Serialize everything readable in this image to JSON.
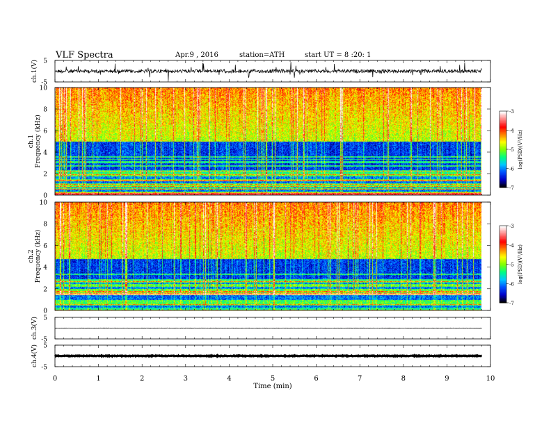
{
  "header": {
    "title": "VLF  Spectra",
    "date": "Apr.9 , 2016",
    "station": "station=ATH",
    "start": "start  UT  =   8 :20: 1"
  },
  "chart_data": [
    {
      "type": "line",
      "panel": "ch1-waveform",
      "ylabel": "ch.1(V)",
      "ylim": [
        -5,
        5
      ],
      "y_ticks": [
        "5",
        "-5"
      ],
      "xlim": [
        0,
        10
      ],
      "baseline": 0
    },
    {
      "type": "heatmap",
      "panel": "ch1-spectrogram",
      "ylabel": "ch.1 Frequency  (kHz)",
      "ylim": [
        0,
        10
      ],
      "y_ticks": [
        "0",
        "2",
        "4",
        "6",
        "8",
        "10"
      ],
      "xlim": [
        0,
        10
      ],
      "colorbar": {
        "label": "log(PSD)(V²/Hz)",
        "range": [
          -7,
          -3
        ],
        "ticks": [
          "-3",
          "-4",
          "-5",
          "-6",
          "-7"
        ],
        "colormap": [
          "#000000",
          "#0000c8",
          "#0050ff",
          "#00c8ff",
          "#00ff80",
          "#80ff00",
          "#ffff00",
          "#ff8000",
          "#ff0000",
          "#ff8080",
          "#ffffff"
        ]
      }
    },
    {
      "type": "heatmap",
      "panel": "ch2-spectrogram",
      "ylabel": "ch.2 Frequency  (kHz)",
      "ylim": [
        0,
        10
      ],
      "y_ticks": [
        "0",
        "2",
        "4",
        "6",
        "8",
        "10"
      ],
      "xlim": [
        0,
        10
      ],
      "colorbar": {
        "label": "log(PSD)(V²/Hz)",
        "range": [
          -7,
          -3
        ],
        "ticks": [
          "-3",
          "-4",
          "-5",
          "-6",
          "-7"
        ],
        "colormap": [
          "#000000",
          "#0000c8",
          "#0050ff",
          "#00c8ff",
          "#00ff80",
          "#80ff00",
          "#ffff00",
          "#ff8000",
          "#ff0000",
          "#ff8080",
          "#ffffff"
        ]
      }
    },
    {
      "type": "line",
      "panel": "ch3-waveform",
      "ylabel": "ch.3(V)",
      "ylim": [
        -5,
        5
      ],
      "y_ticks": [
        "5",
        "-5"
      ],
      "xlim": [
        0,
        10
      ],
      "baseline": 0
    },
    {
      "type": "line",
      "panel": "ch4-waveform",
      "ylabel": "ch.4(V)",
      "ylim": [
        -5,
        5
      ],
      "y_ticks": [
        "5",
        "-5"
      ],
      "xlim": [
        0,
        10
      ],
      "baseline": 0
    }
  ],
  "x_axis": {
    "label": "Time  (min)",
    "ticks": [
      "0",
      "1",
      "2",
      "3",
      "4",
      "5",
      "6",
      "7",
      "8",
      "9",
      "10"
    ]
  }
}
